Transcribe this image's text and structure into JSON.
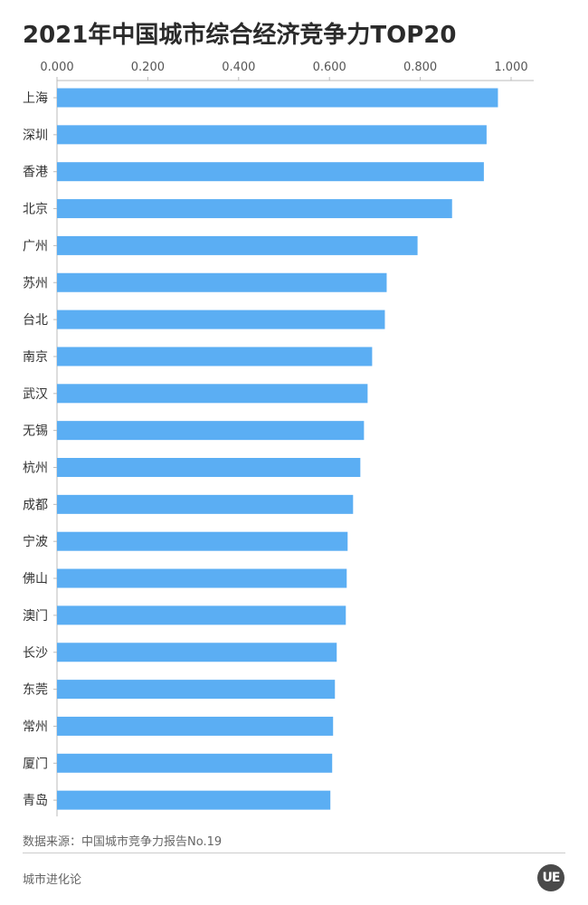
{
  "header": {
    "title": "2021年中国城市综合经济竞争力TOP20"
  },
  "footer": {
    "source": "数据来源：中国城市竞争力报告No.19",
    "brand": "城市进化论",
    "logo_text": "UE"
  },
  "colors": {
    "bar": "#5baef3",
    "axis": "#bbbbbb",
    "text": "#333333"
  },
  "chart_data": {
    "type": "bar",
    "orientation": "horizontal",
    "title": "2021年中国城市综合经济竞争力TOP20",
    "xlabel": "",
    "ylabel": "",
    "xlim": [
      0,
      1.0
    ],
    "x_ticks": [
      "0.000",
      "0.200",
      "0.400",
      "0.600",
      "0.800",
      "1.000"
    ],
    "x_tick_values": [
      0,
      0.2,
      0.4,
      0.6,
      0.8,
      1.0
    ],
    "grid": false,
    "categories": [
      "上海",
      "深圳",
      "香港",
      "北京",
      "广州",
      "苏州",
      "台北",
      "南京",
      "武汉",
      "无锡",
      "杭州",
      "成都",
      "宁波",
      "佛山",
      "澳门",
      "长沙",
      "东莞",
      "常州",
      "厦门",
      "青岛"
    ],
    "values": [
      0.971,
      0.946,
      0.94,
      0.87,
      0.794,
      0.726,
      0.722,
      0.694,
      0.684,
      0.676,
      0.668,
      0.652,
      0.64,
      0.638,
      0.636,
      0.616,
      0.612,
      0.608,
      0.606,
      0.602
    ]
  }
}
